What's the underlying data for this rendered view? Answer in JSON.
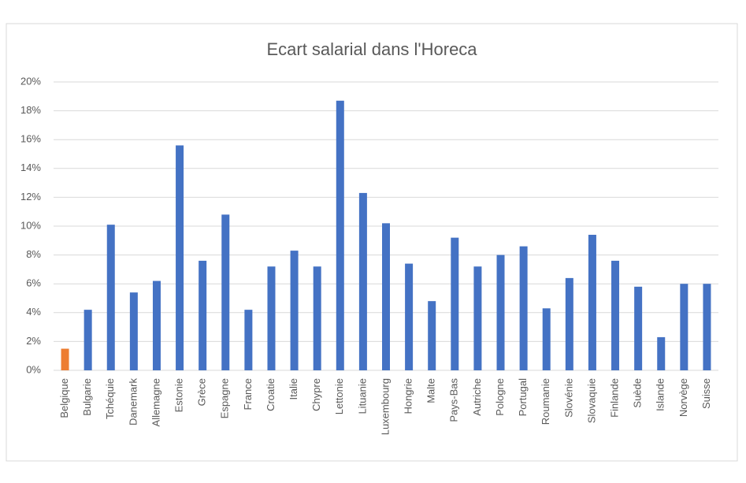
{
  "chart_data": {
    "type": "bar",
    "title": "Ecart salarial dans l'Horeca",
    "categories": [
      "Belgique",
      "Bulgarie",
      "Tchéquie",
      "Danemark",
      "Allemagne",
      "Estonie",
      "Grèce",
      "Espagne",
      "France",
      "Croatie",
      "Italie",
      "Chypre",
      "Lettonie",
      "Lituanie",
      "Luxembourg",
      "Hongrie",
      "Malte",
      "Pays-Bas",
      "Autriche",
      "Pologne",
      "Portugal",
      "Roumanie",
      "Slovénie",
      "Slovaquie",
      "Finlande",
      "Suède",
      "Islande",
      "Norvège",
      "Suisse"
    ],
    "values": [
      1.5,
      4.2,
      10.1,
      5.4,
      6.2,
      15.6,
      7.6,
      10.8,
      4.2,
      7.2,
      8.3,
      7.2,
      18.7,
      12.3,
      10.2,
      7.4,
      4.8,
      9.2,
      7.2,
      8.0,
      8.6,
      4.3,
      6.4,
      9.4,
      7.6,
      5.8,
      2.3,
      6.0,
      6.0
    ],
    "colors": [
      "#ed7d31",
      "#4472c4",
      "#4472c4",
      "#4472c4",
      "#4472c4",
      "#4472c4",
      "#4472c4",
      "#4472c4",
      "#4472c4",
      "#4472c4",
      "#4472c4",
      "#4472c4",
      "#4472c4",
      "#4472c4",
      "#4472c4",
      "#4472c4",
      "#4472c4",
      "#4472c4",
      "#4472c4",
      "#4472c4",
      "#4472c4",
      "#4472c4",
      "#4472c4",
      "#4472c4",
      "#4472c4",
      "#4472c4",
      "#4472c4",
      "#4472c4",
      "#4472c4"
    ],
    "ylim": [
      0,
      20
    ],
    "yticks": [
      {
        "value": 0,
        "label": "0%"
      },
      {
        "value": 2,
        "label": "2%"
      },
      {
        "value": 4,
        "label": "4%"
      },
      {
        "value": 6,
        "label": "6%"
      },
      {
        "value": 8,
        "label": "8%"
      },
      {
        "value": 10,
        "label": "10%"
      },
      {
        "value": 12,
        "label": "12%"
      },
      {
        "value": 14,
        "label": "14%"
      },
      {
        "value": 16,
        "label": "16%"
      },
      {
        "value": 18,
        "label": "18%"
      },
      {
        "value": 20,
        "label": "20%"
      }
    ],
    "grid": true
  }
}
